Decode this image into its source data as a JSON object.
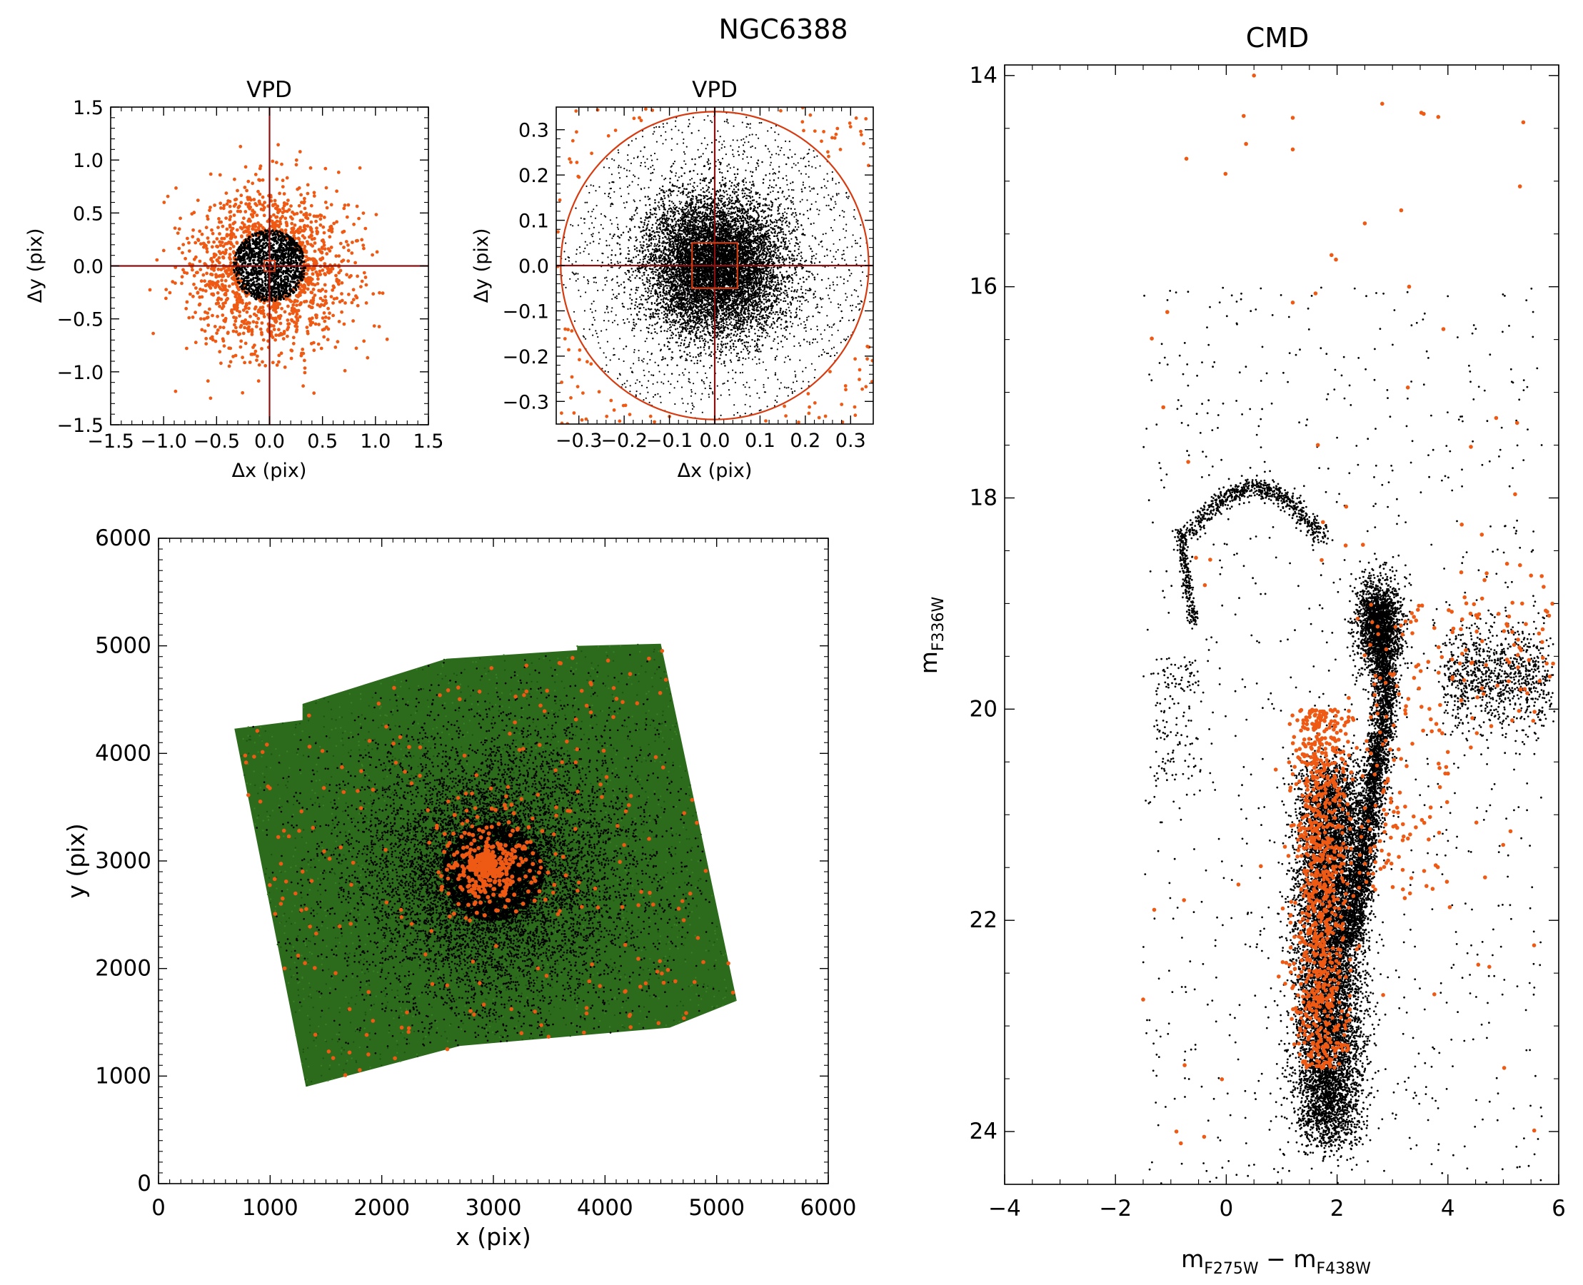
{
  "figure": {
    "title": "NGC6388"
  },
  "colors": {
    "background": "#ffffff",
    "axes": "#000000",
    "selected": "#ee5a14",
    "crosshair": "#8b0f0f",
    "selection_box": "#d83a0f",
    "field_green": "#2c6b1c",
    "cluster_black": "#000000"
  },
  "chart_data": [
    {
      "id": "vpd_wide",
      "type": "scatter",
      "title": "VPD",
      "xlabel": "Δx (pix)",
      "ylabel": "Δy (pix)",
      "xlim": [
        -1.5,
        1.5
      ],
      "ylim": [
        -1.5,
        1.5
      ],
      "xticks": [
        -1.5,
        -1.0,
        -0.5,
        0.0,
        0.5,
        1.0,
        1.5
      ],
      "xtick_labels": [
        "−1.5",
        "−1.0",
        "−0.5",
        "0.0",
        "0.5",
        "1.0",
        "1.5"
      ],
      "yticks": [
        -1.5,
        -1.0,
        -0.5,
        0.0,
        0.5,
        1.0,
        1.5
      ],
      "ytick_labels": [
        "−1.5",
        "−1.0",
        "−0.5",
        "0.0",
        "0.5",
        "1.0",
        "1.5"
      ],
      "crosshair": [
        0,
        0
      ],
      "selection_box_halfwidth": 0.05,
      "series": [
        {
          "color": "#000000",
          "distribution": "dense core",
          "center": [
            0,
            0
          ],
          "radius": 0.34
        },
        {
          "color": "#ee5a14",
          "distribution": "halo",
          "center": [
            0,
            0
          ],
          "extent": 1.5
        }
      ],
      "grid": false
    },
    {
      "id": "vpd_zoom",
      "type": "scatter",
      "title": "VPD",
      "xlabel": "Δx (pix)",
      "ylabel": "Δy (pix)",
      "xlim": [
        -0.35,
        0.35
      ],
      "ylim": [
        -0.35,
        0.35
      ],
      "xticks": [
        -0.3,
        -0.2,
        -0.1,
        0.0,
        0.1,
        0.2,
        0.3
      ],
      "xtick_labels": [
        "−0.3",
        "−0.2",
        "−0.1",
        "0.0",
        "0.1",
        "0.2",
        "0.3"
      ],
      "yticks": [
        -0.3,
        -0.2,
        -0.1,
        0.0,
        0.1,
        0.2,
        0.3
      ],
      "ytick_labels": [
        "−0.3",
        "−0.2",
        "−0.1",
        "0.0",
        "0.1",
        "0.2",
        "0.3"
      ],
      "crosshair": [
        0,
        0
      ],
      "selection_circle_radius": 0.34,
      "selection_box_halfwidth": 0.05,
      "series": [
        {
          "color": "#000000",
          "distribution": "gaussian core",
          "center": [
            0,
            0
          ],
          "sigma": 0.075
        },
        {
          "color": "#ee5a14",
          "distribution": "outside circle",
          "center": [
            0,
            0
          ]
        }
      ],
      "grid": false
    },
    {
      "id": "map",
      "type": "scatter",
      "xlabel": "x (pix)",
      "ylabel": "y (pix)",
      "xlim": [
        0,
        6000
      ],
      "ylim": [
        0,
        6000
      ],
      "xticks": [
        0,
        1000,
        2000,
        3000,
        4000,
        5000,
        6000
      ],
      "xtick_labels": [
        "0",
        "1000",
        "2000",
        "3000",
        "4000",
        "5000",
        "6000"
      ],
      "yticks": [
        0,
        1000,
        2000,
        3000,
        4000,
        5000,
        6000
      ],
      "ytick_labels": [
        "0",
        "1000",
        "2000",
        "3000",
        "4000",
        "5000",
        "6000"
      ],
      "field_polygon": [
        [
          680,
          4230
        ],
        [
          1290,
          4310
        ],
        [
          1290,
          4460
        ],
        [
          2580,
          4880
        ],
        [
          3750,
          4960
        ],
        [
          3750,
          5000
        ],
        [
          4500,
          5020
        ],
        [
          5180,
          1700
        ],
        [
          4580,
          1450
        ],
        [
          2700,
          1280
        ],
        [
          1320,
          900
        ]
      ],
      "cluster_center": [
        3000,
        2900
      ],
      "series": [
        {
          "color": "#2c6b1c",
          "distribution": "field stars"
        },
        {
          "color": "#000000",
          "distribution": "cluster concentration",
          "center": [
            3000,
            2900
          ]
        },
        {
          "color": "#ee5a14",
          "distribution": "selected stars",
          "center": [
            2950,
            2950
          ]
        }
      ],
      "grid": false
    },
    {
      "id": "cmd",
      "type": "scatter",
      "title": "CMD",
      "xlabel": "m",
      "xlabel_sub1": "F275W",
      "xlabel_sep": " − m",
      "xlabel_sub2": "F438W",
      "ylabel": "m",
      "ylabel_sub": "F336W",
      "xlim": [
        -4,
        6
      ],
      "ylim": [
        24.5,
        13.9
      ],
      "xticks": [
        -4,
        -2,
        0,
        2,
        4,
        6
      ],
      "xtick_labels": [
        "−4",
        "−2",
        "0",
        "2",
        "4",
        "6"
      ],
      "yticks": [
        14,
        16,
        18,
        20,
        22,
        24
      ],
      "ytick_labels": [
        "14",
        "16",
        "18",
        "20",
        "22",
        "24"
      ],
      "features": [
        {
          "name_in_figure": "",
          "kind": "main sequence",
          "from": [
            1.8,
            23.8
          ],
          "to": [
            1.9,
            21.0
          ]
        },
        {
          "name_in_figure": "",
          "kind": "red giant branch",
          "from": [
            2.3,
            21.2
          ],
          "to": [
            2.7,
            19.0
          ]
        },
        {
          "name_in_figure": "",
          "kind": "horizontal branch",
          "from": [
            -0.8,
            18.3
          ],
          "to": [
            1.5,
            17.9
          ]
        }
      ],
      "series": [
        {
          "color": "#000000",
          "distribution": "all stars"
        },
        {
          "color": "#ee5a14",
          "distribution": "selected stars"
        }
      ],
      "grid": false
    }
  ]
}
